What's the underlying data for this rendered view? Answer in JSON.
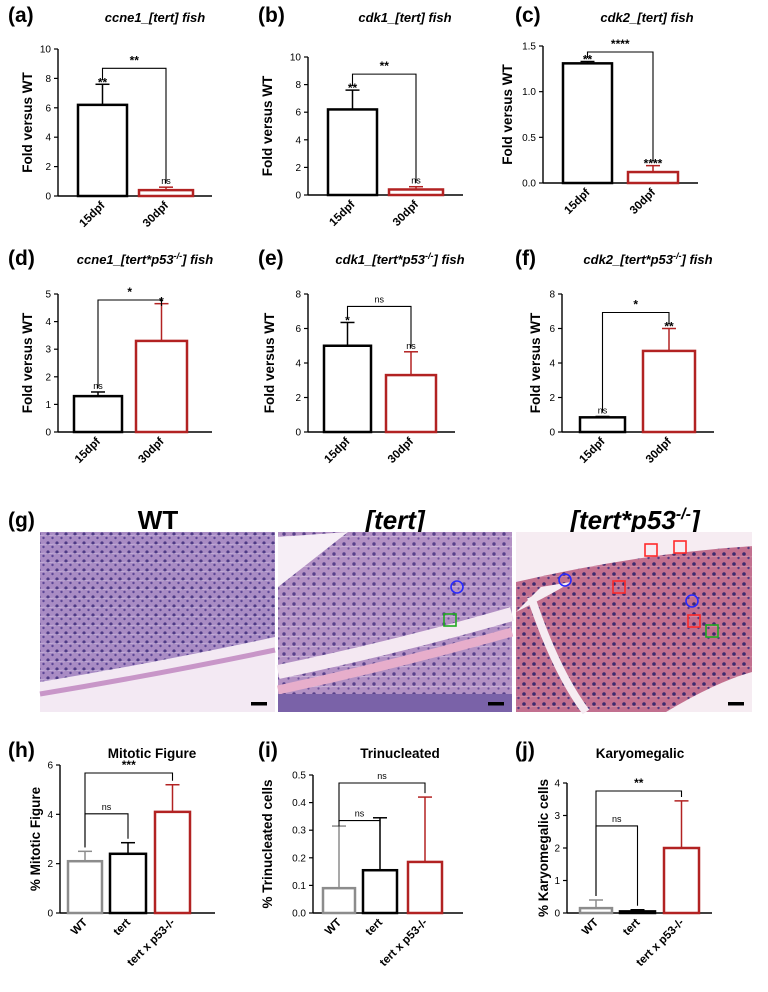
{
  "colors": {
    "wt": "#8c8c8c",
    "tert": "#000000",
    "tertp53": "#b22222"
  },
  "histology": {
    "letter": "(g)",
    "panels": [
      {
        "title": "WT",
        "italic": false
      },
      {
        "title": "[tert]",
        "italic": true
      },
      {
        "title": "[tert*p53",
        "sup": "-/-",
        "close": "]",
        "italic": true
      }
    ]
  },
  "chart_data": [
    {
      "letter": "(a)",
      "type": "bar",
      "title": "ccne1_[tert] fish",
      "ylabel": "Fold versus WT",
      "categories": [
        "15dpf",
        "30dpf"
      ],
      "values": [
        6.2,
        0.4
      ],
      "errors": [
        1.4,
        0.2
      ],
      "ylim": [
        0,
        10
      ],
      "yticks": [
        "0",
        "2",
        "4",
        "6",
        "8",
        "10"
      ],
      "bar_labels": [
        "**",
        "ns"
      ],
      "comparisons": [
        {
          "label": "**",
          "from": 0,
          "to": 1
        }
      ]
    },
    {
      "letter": "(b)",
      "type": "bar",
      "title": "cdk1_[tert] fish",
      "ylabel": "Fold versus WT",
      "categories": [
        "15dpf",
        "30dpf"
      ],
      "values": [
        6.2,
        0.4
      ],
      "errors": [
        1.4,
        0.2
      ],
      "ylim": [
        0,
        10
      ],
      "yticks": [
        "0",
        "2",
        "4",
        "6",
        "8",
        "10"
      ],
      "bar_labels": [
        "**",
        "ns"
      ],
      "comparisons": [
        {
          "label": "**",
          "from": 0,
          "to": 1
        }
      ]
    },
    {
      "letter": "(c)",
      "type": "bar",
      "title": "cdk2_[tert] fish",
      "ylabel": "Fold versus WT",
      "categories": [
        "15dpf",
        "30dpf"
      ],
      "values": [
        1.31,
        0.12
      ],
      "errors": [
        0.02,
        0.07
      ],
      "ylim": [
        0,
        1.5
      ],
      "yticks": [
        "0.0",
        "0.5",
        "1.0",
        "1.5"
      ],
      "bar_labels": [
        "**",
        "****"
      ],
      "comparisons": [
        {
          "label": "****",
          "from": 0,
          "to": 1
        }
      ]
    },
    {
      "letter": "(d)",
      "type": "bar",
      "title": "ccne1_[tert*p53",
      "title_sup": "-/-",
      "title_end": "] fish",
      "ylabel": "Fold versus WT",
      "categories": [
        "15dpf",
        "30dpf"
      ],
      "values": [
        1.3,
        3.3
      ],
      "errors": [
        0.15,
        1.35
      ],
      "ylim": [
        0,
        5
      ],
      "yticks": [
        "0",
        "1",
        "2",
        "3",
        "4",
        "5"
      ],
      "bar_labels": [
        "ns",
        "*"
      ],
      "comparisons": [
        {
          "label": "*",
          "from": 0,
          "to": 1
        }
      ]
    },
    {
      "letter": "(e)",
      "type": "bar",
      "title": "cdk1_[tert*p53",
      "title_sup": "-/-",
      "title_end": "] fish",
      "ylabel": "Fold versus WT",
      "categories": [
        "15dpf",
        "30dpf"
      ],
      "values": [
        5.0,
        3.3
      ],
      "errors": [
        1.35,
        1.35
      ],
      "ylim": [
        0,
        8
      ],
      "yticks": [
        "0",
        "2",
        "4",
        "6",
        "8"
      ],
      "bar_labels": [
        "*",
        "ns"
      ],
      "comparisons": [
        {
          "label": "ns",
          "from": 0,
          "to": 1
        }
      ]
    },
    {
      "letter": "(f)",
      "type": "bar",
      "title": "cdk2_[tert*p53",
      "title_sup": "-/-",
      "title_end": "] fish",
      "ylabel": "Fold versus WT",
      "categories": [
        "15dpf",
        "30dpf"
      ],
      "values": [
        0.85,
        4.7
      ],
      "errors": [
        0.05,
        1.3
      ],
      "ylim": [
        0,
        8
      ],
      "yticks": [
        "0",
        "2",
        "4",
        "6",
        "8"
      ],
      "bar_labels": [
        "ns",
        "**"
      ],
      "comparisons": [
        {
          "label": "*",
          "from": 0,
          "to": 1
        }
      ]
    },
    {
      "letter": "(h)",
      "type": "bar",
      "title": "Mitotic Figure",
      "ylabel": "% Mitotic Figure",
      "categories": [
        "WT",
        "tert",
        "tert x p53-/-"
      ],
      "values": [
        2.1,
        2.4,
        4.1
      ],
      "errors": [
        0.4,
        0.45,
        1.1
      ],
      "ylim": [
        0,
        6
      ],
      "yticks": [
        "0",
        "2",
        "4",
        "6"
      ],
      "bar_labels": [
        "",
        "",
        ""
      ],
      "comparisons": [
        {
          "label": "ns",
          "from": 0,
          "to": 1
        },
        {
          "label": "***",
          "from": 0,
          "to": 2
        }
      ]
    },
    {
      "letter": "(i)",
      "type": "bar",
      "title": "Trinucleated",
      "ylabel": "% Trinucleated cells",
      "categories": [
        "WT",
        "tert",
        "tert x p53-/-"
      ],
      "values": [
        0.09,
        0.155,
        0.185
      ],
      "errors": [
        0.225,
        0.19,
        0.235
      ],
      "ylim": [
        0,
        0.5
      ],
      "yticks": [
        "0.0",
        "0.1",
        "0.2",
        "0.3",
        "0.4",
        "0.5"
      ],
      "bar_labels": [
        "",
        "",
        ""
      ],
      "comparisons": [
        {
          "label": "ns",
          "from": 0,
          "to": 1
        },
        {
          "label": "ns",
          "from": 0,
          "to": 2
        }
      ]
    },
    {
      "letter": "(j)",
      "type": "bar",
      "title": "Karyomegalic",
      "ylabel": "% Karyomegalic cells",
      "categories": [
        "WT",
        "tert",
        "tert x p53-/-"
      ],
      "values": [
        0.15,
        0.05,
        2.0
      ],
      "errors": [
        0.25,
        0.05,
        1.45
      ],
      "ylim": [
        0,
        4
      ],
      "yticks": [
        "0",
        "1",
        "2",
        "3",
        "4"
      ],
      "bar_labels": [
        "",
        "",
        ""
      ],
      "comparisons": [
        {
          "label": "ns",
          "from": 0,
          "to": 1
        },
        {
          "label": "**",
          "from": 0,
          "to": 2
        }
      ]
    }
  ]
}
